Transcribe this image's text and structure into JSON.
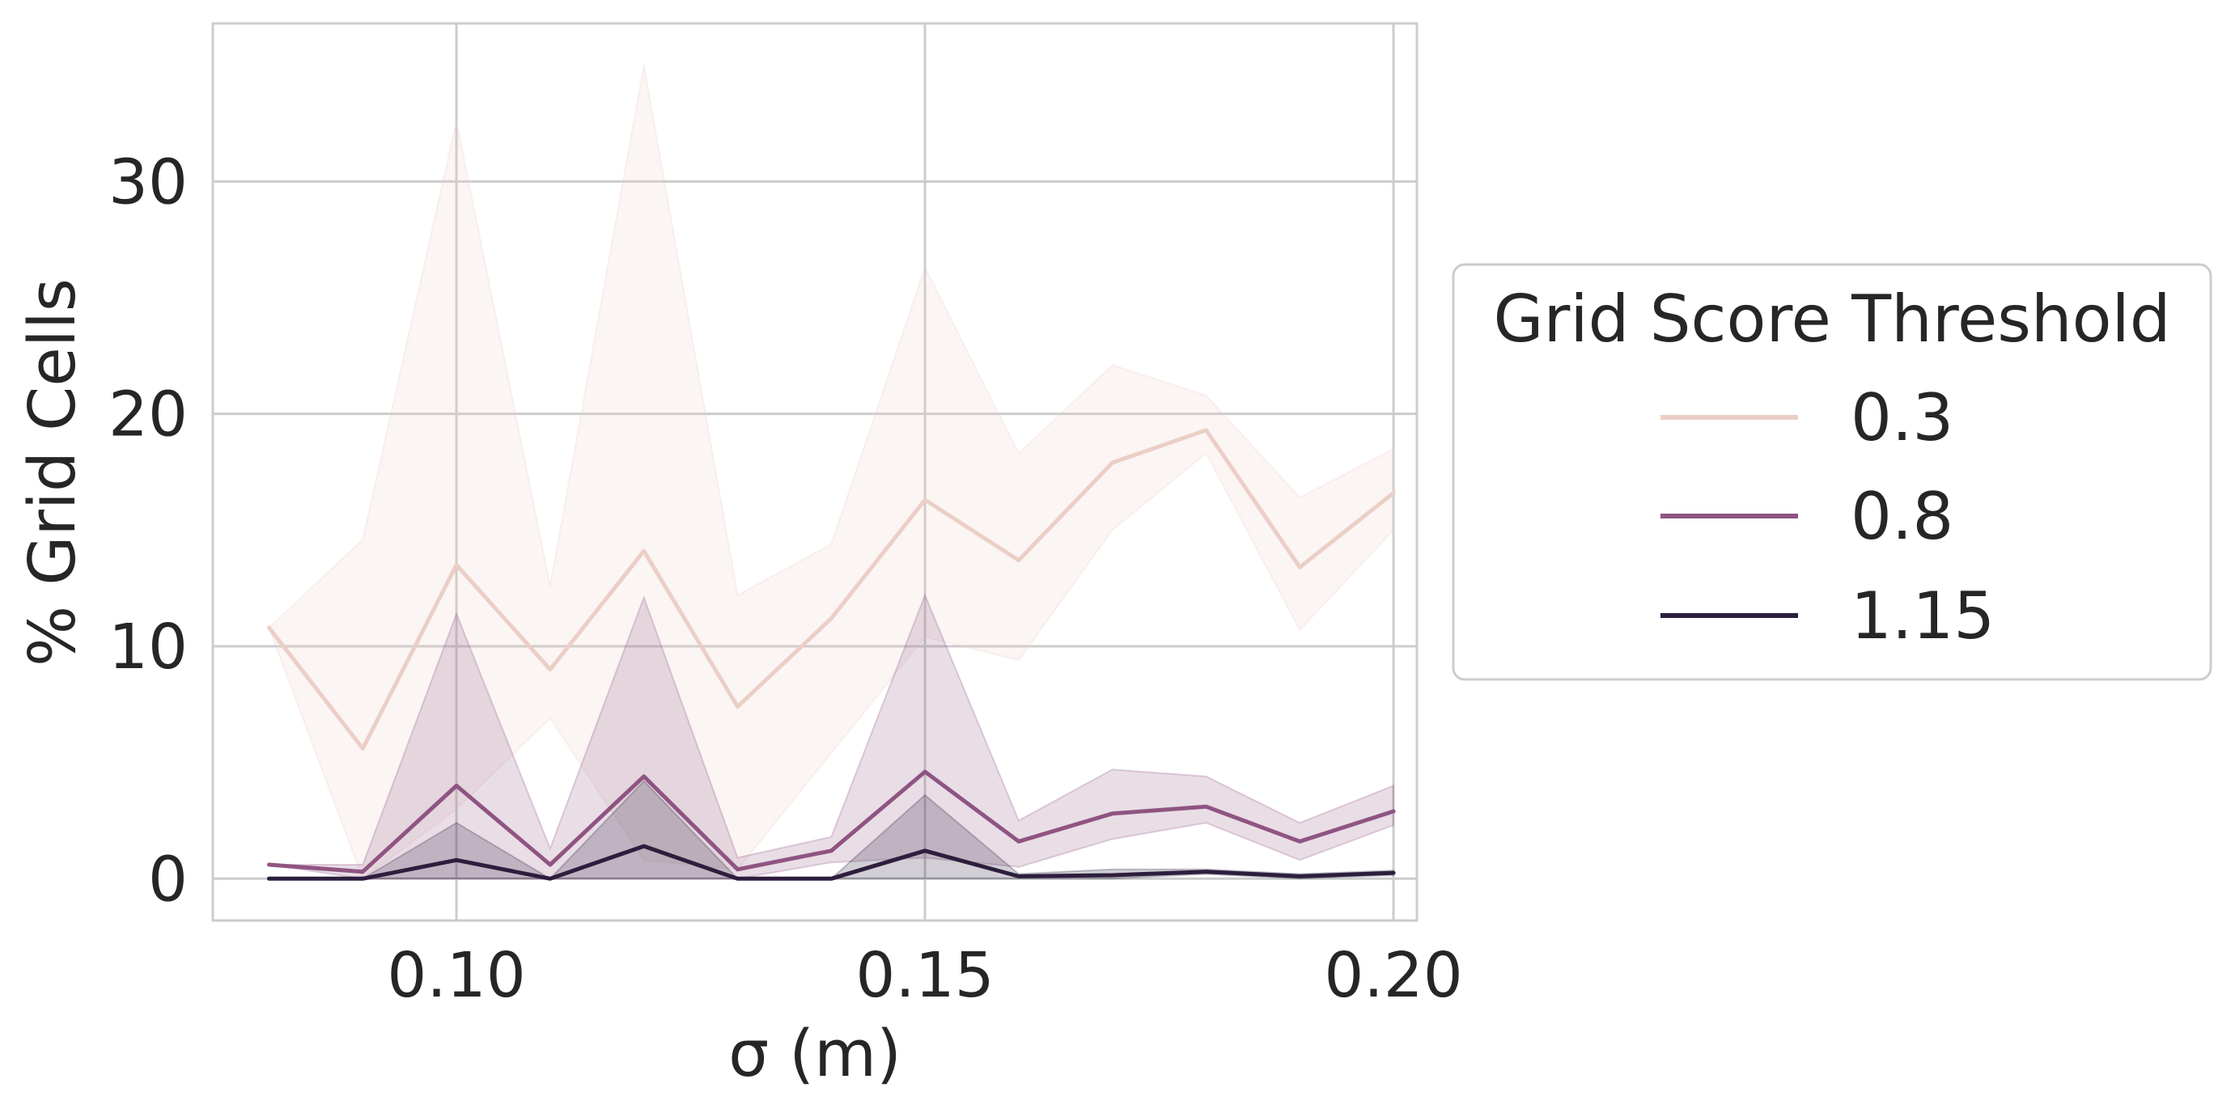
{
  "chart_data": {
    "type": "line",
    "xlabel": "σ (m)",
    "ylabel": "% Grid Cells",
    "xlim": [
      0.074,
      0.2025
    ],
    "ylim": [
      -1.8,
      36.8
    ],
    "x_ticks": [
      0.1,
      0.15,
      0.2
    ],
    "x_tick_labels": [
      "0.10",
      "0.15",
      "0.20"
    ],
    "y_ticks": [
      0,
      10,
      20,
      30
    ],
    "y_tick_labels": [
      "0",
      "10",
      "20",
      "30"
    ],
    "grid": true,
    "legend": {
      "title": "Grid Score Threshold",
      "placement": "outside-right",
      "entries": [
        "0.3",
        "0.8",
        "1.15"
      ]
    },
    "x": [
      0.08,
      0.09,
      0.1,
      0.11,
      0.12,
      0.13,
      0.14,
      0.15,
      0.16,
      0.17,
      0.18,
      0.19,
      0.2
    ],
    "series": [
      {
        "name": "0.3",
        "color": "#ebcfc6",
        "values": [
          10.8,
          5.6,
          13.5,
          9.0,
          14.1,
          7.4,
          11.2,
          16.3,
          13.7,
          17.9,
          19.3,
          13.4,
          16.6
        ],
        "ci_upper": [
          10.8,
          14.6,
          32.6,
          12.6,
          35.0,
          12.2,
          14.4,
          26.3,
          18.3,
          22.1,
          20.8,
          16.4,
          18.5
        ],
        "ci_lower": [
          10.8,
          0.0,
          3.0,
          6.9,
          0.8,
          0.4,
          5.4,
          10.4,
          9.4,
          15.0,
          18.3,
          10.7,
          15.0
        ]
      },
      {
        "name": "0.8",
        "color": "#8f5482",
        "values": [
          0.6,
          0.3,
          4.0,
          0.6,
          4.4,
          0.4,
          1.2,
          4.6,
          1.6,
          2.8,
          3.1,
          1.6,
          2.9
        ],
        "ci_upper": [
          0.6,
          0.6,
          11.4,
          1.3,
          12.1,
          0.9,
          1.8,
          12.2,
          2.5,
          4.7,
          4.4,
          2.4,
          4.0
        ],
        "ci_lower": [
          0.6,
          0.0,
          0.0,
          0.0,
          0.0,
          0.0,
          0.7,
          0.9,
          0.5,
          1.7,
          2.4,
          0.8,
          2.3
        ]
      },
      {
        "name": "1.15",
        "color": "#2d1e3e",
        "values": [
          0.0,
          0.0,
          0.8,
          0.0,
          1.4,
          0.0,
          0.0,
          1.2,
          0.1,
          0.15,
          0.3,
          0.1,
          0.25
        ],
        "ci_upper": [
          0.0,
          0.0,
          2.4,
          0.0,
          4.2,
          0.0,
          0.0,
          3.6,
          0.2,
          0.4,
          0.4,
          0.2,
          0.35
        ],
        "ci_lower": [
          0.0,
          0.0,
          0.0,
          0.0,
          0.0,
          0.0,
          0.0,
          0.0,
          0.0,
          0.0,
          0.2,
          0.0,
          0.15
        ]
      }
    ]
  }
}
